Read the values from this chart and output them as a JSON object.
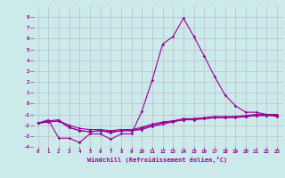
{
  "xlabel": "Windchill (Refroidissement éolien,°C)",
  "x": [
    0,
    1,
    2,
    3,
    4,
    5,
    6,
    7,
    8,
    9,
    10,
    11,
    12,
    13,
    14,
    15,
    16,
    17,
    18,
    19,
    20,
    21,
    22,
    23
  ],
  "line1": [
    -1.8,
    -1.5,
    -3.2,
    -3.2,
    -3.6,
    -2.8,
    -2.8,
    -3.3,
    -2.8,
    -2.8,
    -0.7,
    2.2,
    5.5,
    6.2,
    7.9,
    6.2,
    4.4,
    2.5,
    0.8,
    -0.2,
    -0.8,
    -0.8,
    -1.0,
    -1.2
  ],
  "line2": [
    -1.8,
    -1.6,
    -1.5,
    -2.2,
    -2.5,
    -2.6,
    -2.5,
    -2.6,
    -2.5,
    -2.5,
    -2.3,
    -2.0,
    -1.8,
    -1.6,
    -1.4,
    -1.4,
    -1.4,
    -1.3,
    -1.3,
    -1.3,
    -1.2,
    -1.1,
    -1.1,
    -1.1
  ],
  "line3": [
    -1.8,
    -1.7,
    -1.6,
    -2.0,
    -2.3,
    -2.4,
    -2.4,
    -2.5,
    -2.4,
    -2.4,
    -2.2,
    -1.9,
    -1.7,
    -1.6,
    -1.5,
    -1.4,
    -1.3,
    -1.2,
    -1.2,
    -1.2,
    -1.1,
    -1.0,
    -1.0,
    -1.0
  ],
  "line4": [
    -1.8,
    -1.7,
    -1.6,
    -2.2,
    -2.5,
    -2.6,
    -2.5,
    -2.7,
    -2.5,
    -2.5,
    -2.4,
    -2.1,
    -1.9,
    -1.7,
    -1.5,
    -1.5,
    -1.4,
    -1.3,
    -1.3,
    -1.2,
    -1.2,
    -1.1,
    -1.1,
    -1.1
  ],
  "line_color": "#990099",
  "bg_color": "#cceaea",
  "grid_color": "#bbbbcc",
  "ylim": [
    -4,
    9
  ],
  "yticks": [
    -4,
    -3,
    -2,
    -1,
    0,
    1,
    2,
    3,
    4,
    5,
    6,
    7,
    8
  ],
  "xticks": [
    0,
    1,
    2,
    3,
    4,
    5,
    6,
    7,
    8,
    9,
    10,
    11,
    12,
    13,
    14,
    15,
    16,
    17,
    18,
    19,
    20,
    21,
    22,
    23
  ]
}
